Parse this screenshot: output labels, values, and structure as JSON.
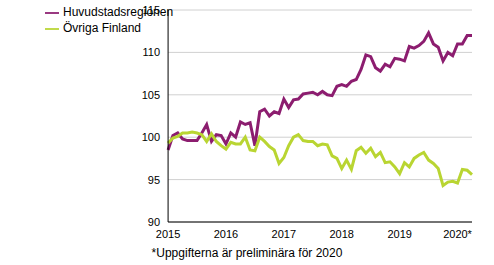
{
  "chart_data": {
    "type": "line",
    "annotation": "*Uppgifterna är preliminära för 2020",
    "categories": [
      "2015",
      null,
      null,
      null,
      null,
      null,
      null,
      null,
      null,
      null,
      null,
      null,
      "2016",
      null,
      null,
      null,
      null,
      null,
      null,
      null,
      null,
      null,
      null,
      null,
      "2017",
      null,
      null,
      null,
      null,
      null,
      null,
      null,
      null,
      null,
      null,
      null,
      "2018",
      null,
      null,
      null,
      null,
      null,
      null,
      null,
      null,
      null,
      null,
      null,
      "2019",
      null,
      null,
      null,
      null,
      null,
      null,
      null,
      null,
      null,
      null,
      null,
      "2020*",
      null,
      null,
      null
    ],
    "series": [
      {
        "name": "Huvudstadsregionen",
        "color": "#8c1d6f",
        "values": [
          98.5,
          100.2,
          100.5,
          99.8,
          99.6,
          99.6,
          99.6,
          100.5,
          101.5,
          99.5,
          100.3,
          100.2,
          99.2,
          100.5,
          100.0,
          101.8,
          101.5,
          101.7,
          99.0,
          103.0,
          103.3,
          102.5,
          103.0,
          102.8,
          104.5,
          103.5,
          104.4,
          104.5,
          105.1,
          105.2,
          105.3,
          105.0,
          105.4,
          105.0,
          104.9,
          106.0,
          106.2,
          106.0,
          106.6,
          106.8,
          108.0,
          109.7,
          109.5,
          108.2,
          107.8,
          108.6,
          108.3,
          109.3,
          109.2,
          109.0,
          110.7,
          110.5,
          110.8,
          111.3,
          112.3,
          111.0,
          110.6,
          109.0,
          110.0,
          109.6,
          111.0,
          111.0,
          112.0,
          112.0
        ]
      },
      {
        "name": "Övriga Finland",
        "color": "#b9d532",
        "values": [
          99.3,
          99.9,
          100.1,
          100.5,
          100.5,
          100.6,
          100.5,
          100.3,
          99.5,
          100.4,
          99.5,
          99.0,
          98.6,
          99.4,
          99.2,
          99.2,
          100.0,
          98.5,
          98.4,
          100.0,
          99.5,
          98.9,
          98.5,
          96.9,
          97.6,
          99.0,
          100.0,
          100.3,
          99.6,
          99.5,
          99.5,
          99.0,
          99.2,
          99.1,
          97.8,
          97.5,
          96.3,
          97.3,
          96.2,
          98.4,
          98.8,
          98.1,
          98.7,
          97.7,
          98.2,
          97.0,
          97.1,
          96.5,
          95.7,
          97.0,
          96.5,
          97.5,
          97.9,
          98.2,
          97.3,
          96.9,
          96.3,
          94.3,
          94.7,
          94.8,
          94.6,
          96.2,
          96.1,
          95.6
        ]
      }
    ],
    "ylim": [
      90,
      115
    ],
    "yticks": [
      90,
      95,
      100,
      105,
      110,
      115
    ],
    "grid": true,
    "legend": "top-left"
  }
}
